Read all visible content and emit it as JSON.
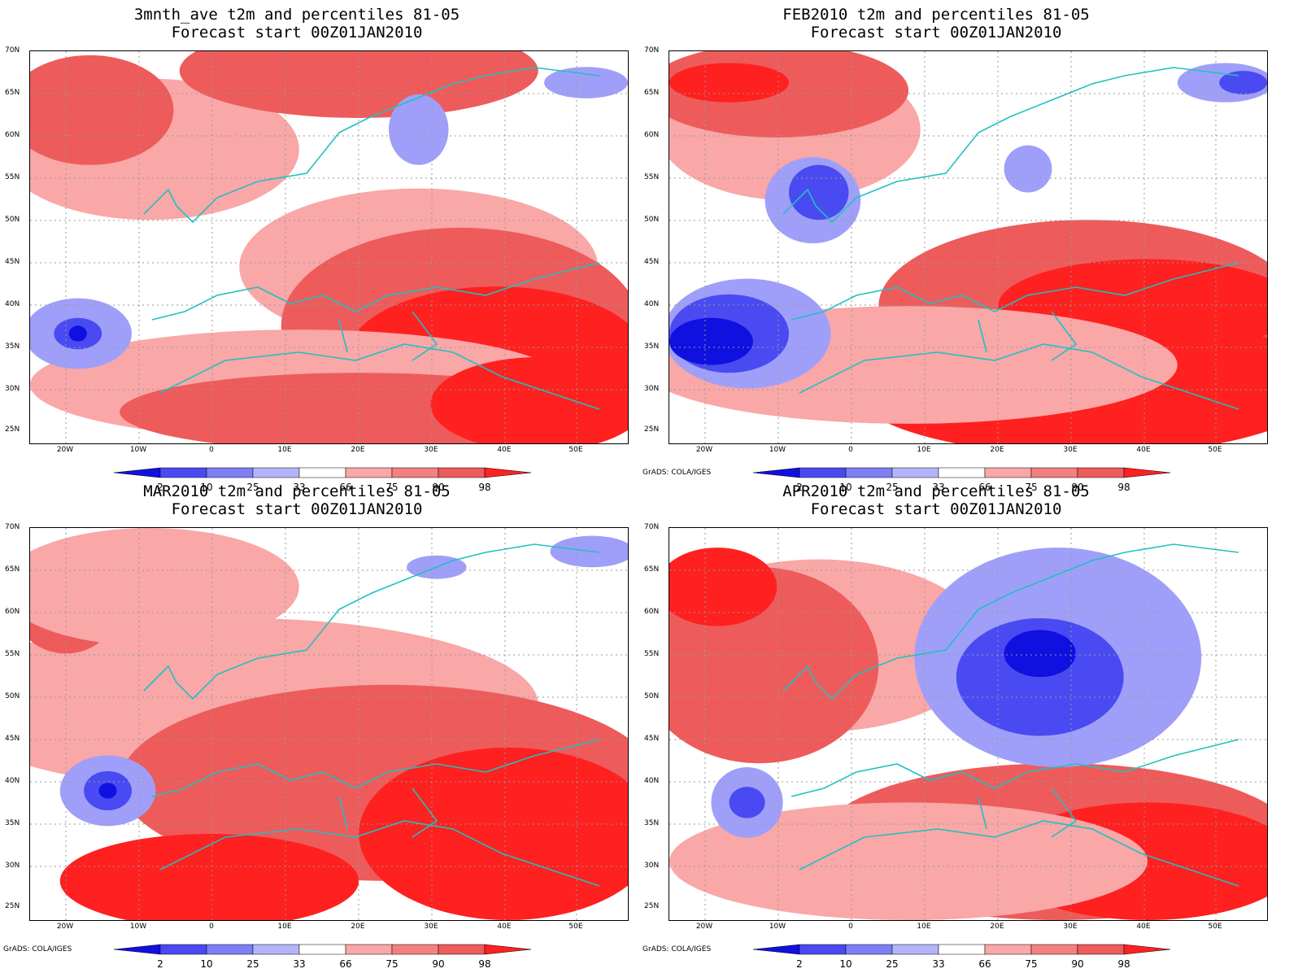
{
  "panels": [
    {
      "id": "p1",
      "title_line1": "3mnth_ave t2m and percentiles 81-05",
      "title_line2": "Forecast start 00Z01JAN2010",
      "credit": "",
      "blobs": [
        [
          "#f9a7a7",
          0.2,
          0.25,
          0.25,
          0.18
        ],
        [
          "#ee5b5b",
          0.1,
          0.15,
          0.14,
          0.14
        ],
        [
          "#ee5b5b",
          0.55,
          0.05,
          0.3,
          0.12
        ],
        [
          "#f9a7a7",
          0.65,
          0.55,
          0.3,
          0.2
        ],
        [
          "#ee5b5b",
          0.72,
          0.7,
          0.3,
          0.25
        ],
        [
          "#ff2020",
          0.78,
          0.78,
          0.25,
          0.18
        ],
        [
          "#f9a7a7",
          0.45,
          0.85,
          0.45,
          0.14
        ],
        [
          "#ee5b5b",
          0.55,
          0.92,
          0.4,
          0.1
        ],
        [
          "#ff2020",
          0.85,
          0.9,
          0.18,
          0.12
        ],
        [
          "#9f9ff9",
          0.08,
          0.72,
          0.09,
          0.09
        ],
        [
          "#4a4af2",
          0.08,
          0.72,
          0.04,
          0.04
        ],
        [
          "#1010e0",
          0.08,
          0.72,
          0.015,
          0.02
        ],
        [
          "#9f9ff9",
          0.65,
          0.2,
          0.05,
          0.09
        ],
        [
          "#9f9ff9",
          0.93,
          0.08,
          0.07,
          0.04
        ]
      ]
    },
    {
      "id": "p2",
      "title_line1": "FEB2010 t2m and percentiles 81-05",
      "title_line2": "Forecast start 00Z01JAN2010",
      "credit": "GrADS: COLA/IGES",
      "blobs": [
        [
          "#f9a7a7",
          0.2,
          0.2,
          0.22,
          0.18
        ],
        [
          "#ee5b5b",
          0.18,
          0.1,
          0.22,
          0.12
        ],
        [
          "#ff2020",
          0.1,
          0.08,
          0.1,
          0.05
        ],
        [
          "#ee5b5b",
          0.7,
          0.65,
          0.35,
          0.22
        ],
        [
          "#ff2020",
          0.7,
          0.85,
          0.4,
          0.18
        ],
        [
          "#ff2020",
          0.8,
          0.65,
          0.25,
          0.12
        ],
        [
          "#f9a7a7",
          0.4,
          0.8,
          0.45,
          0.15
        ],
        [
          "#9f9ff9",
          0.13,
          0.72,
          0.14,
          0.14
        ],
        [
          "#4a4af2",
          0.1,
          0.72,
          0.1,
          0.1
        ],
        [
          "#1010e0",
          0.07,
          0.74,
          0.07,
          0.06
        ],
        [
          "#9f9ff9",
          0.24,
          0.38,
          0.08,
          0.11
        ],
        [
          "#4a4af2",
          0.25,
          0.36,
          0.05,
          0.07
        ],
        [
          "#9f9ff9",
          0.6,
          0.3,
          0.04,
          0.06
        ],
        [
          "#9f9ff9",
          0.93,
          0.08,
          0.08,
          0.05
        ],
        [
          "#4a4af2",
          0.96,
          0.08,
          0.04,
          0.03
        ]
      ]
    },
    {
      "id": "p3",
      "title_line1": "MAR2010 t2m and percentiles 81-05",
      "title_line2": "Forecast start 00Z01JAN2010",
      "credit": "GrADS: COLA/IGES",
      "blobs": [
        [
          "#f9a7a7",
          0.35,
          0.45,
          0.5,
          0.22
        ],
        [
          "#ee5b5b",
          0.6,
          0.65,
          0.45,
          0.25
        ],
        [
          "#ff2020",
          0.8,
          0.78,
          0.25,
          0.22
        ],
        [
          "#ff2020",
          0.3,
          0.9,
          0.25,
          0.12
        ],
        [
          "#ee5b5b",
          0.06,
          0.22,
          0.08,
          0.1
        ],
        [
          "#f9a7a7",
          0.2,
          0.15,
          0.25,
          0.15
        ],
        [
          "#9f9ff9",
          0.13,
          0.67,
          0.08,
          0.09
        ],
        [
          "#4a4af2",
          0.13,
          0.67,
          0.04,
          0.05
        ],
        [
          "#1010e0",
          0.13,
          0.67,
          0.015,
          0.02
        ],
        [
          "#9f9ff9",
          0.68,
          0.1,
          0.05,
          0.03
        ],
        [
          "#9f9ff9",
          0.94,
          0.06,
          0.07,
          0.04
        ]
      ]
    },
    {
      "id": "p4",
      "title_line1": "APR2010 t2m and percentiles 81-05",
      "title_line2": "Forecast start 00Z01JAN2010",
      "credit": "GrADS: COLA/IGES",
      "blobs": [
        [
          "#f9a7a7",
          0.25,
          0.3,
          0.28,
          0.22
        ],
        [
          "#ee5b5b",
          0.15,
          0.35,
          0.2,
          0.25
        ],
        [
          "#ff2020",
          0.08,
          0.15,
          0.1,
          0.1
        ],
        [
          "#ee5b5b",
          0.65,
          0.8,
          0.4,
          0.2
        ],
        [
          "#ff2020",
          0.8,
          0.85,
          0.25,
          0.15
        ],
        [
          "#f9a7a7",
          0.4,
          0.85,
          0.4,
          0.15
        ],
        [
          "#9f9ff9",
          0.65,
          0.33,
          0.24,
          0.28
        ],
        [
          "#4a4af2",
          0.62,
          0.38,
          0.14,
          0.15
        ],
        [
          "#1010e0",
          0.62,
          0.32,
          0.06,
          0.06
        ],
        [
          "#9f9ff9",
          0.13,
          0.7,
          0.06,
          0.09
        ],
        [
          "#4a4af2",
          0.13,
          0.7,
          0.03,
          0.04
        ]
      ]
    }
  ],
  "lat_labels": [
    "70N",
    "65N",
    "60N",
    "55N",
    "50N",
    "45N",
    "40N",
    "35N",
    "30N",
    "25N"
  ],
  "lon_labels": [
    "20W",
    "10W",
    "0",
    "10E",
    "20E",
    "30E",
    "40E",
    "50E"
  ],
  "colorbar": {
    "labels": [
      "2",
      "10",
      "25",
      "33",
      "66",
      "75",
      "90",
      "98"
    ],
    "colors": [
      "#1010e0",
      "#4a4af2",
      "#7e7ef6",
      "#b4b4fa",
      "#ffffff",
      "#f9a7a7",
      "#f47f7f",
      "#ee5b5b",
      "#ff2020"
    ]
  }
}
